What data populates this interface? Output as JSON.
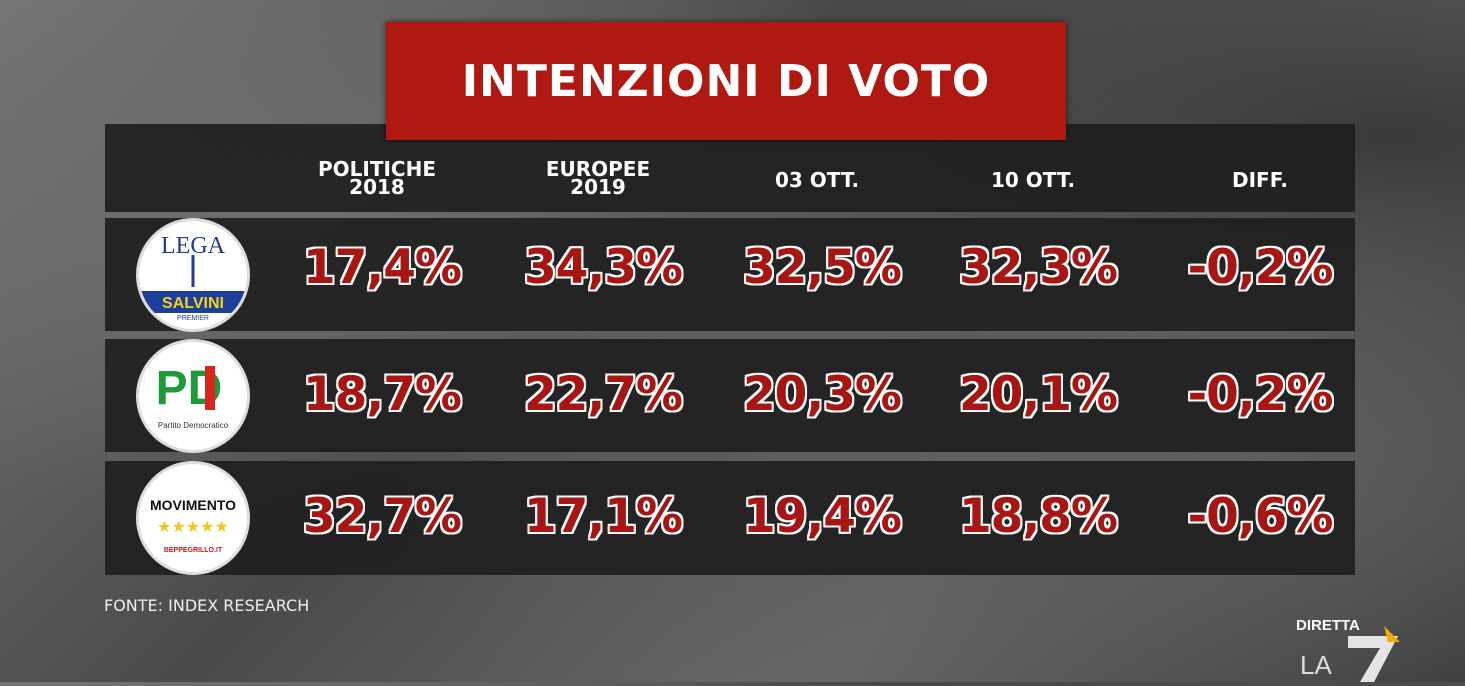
{
  "title": "INTENZIONI DI VOTO",
  "columns": [
    "POLITICHE 2018",
    "EUROPEE 2019",
    "03 OTT.",
    "10 OTT.",
    "DIFF."
  ],
  "columns_lines": [
    [
      "POLITICHE",
      "2018"
    ],
    [
      "EUROPEE",
      "2019"
    ],
    [
      "03 OTT.",
      ""
    ],
    [
      "10 OTT.",
      ""
    ],
    [
      "DIFF.",
      ""
    ]
  ],
  "rows": [
    {
      "party_logo_text": {
        "top": "LEGA",
        "band": "SALVINI",
        "sub": "PREMIER"
      },
      "values": [
        "17,4%",
        "34,3%",
        "32,5%",
        "32,3%",
        "-0,2%"
      ]
    },
    {
      "party_logo_text": {
        "top": "PD",
        "sub": "Partito Democratico"
      },
      "values": [
        "18,7%",
        "22,7%",
        "20,3%",
        "20,1%",
        "-0,2%"
      ]
    },
    {
      "party_logo_text": {
        "top": "MOVIMENTO",
        "sub": "BEPPEGRILLO.IT"
      },
      "values": [
        "32,7%",
        "17,1%",
        "19,4%",
        "18,8%",
        "-0,6%"
      ]
    }
  ],
  "source": "FONTE: INDEX RESEARCH",
  "brand": {
    "line1": "DIRETTA",
    "line2": "LA"
  },
  "colors": {
    "accent": "#b01812",
    "value": "#a71613"
  },
  "chart_data": {
    "type": "table",
    "title": "INTENZIONI DI VOTO",
    "columns": [
      "POLITICHE 2018",
      "EUROPEE 2019",
      "03 OTT.",
      "10 OTT.",
      "DIFF."
    ],
    "rows": [
      {
        "party": "LEGA SALVINI PREMIER",
        "values": [
          17.4,
          34.3,
          32.5,
          32.3,
          -0.2
        ]
      },
      {
        "party": "PD Partito Democratico",
        "values": [
          18.7,
          22.7,
          20.3,
          20.1,
          -0.2
        ]
      },
      {
        "party": "MOVIMENTO 5 STELLE",
        "values": [
          32.7,
          17.1,
          19.4,
          18.8,
          -0.6
        ]
      }
    ],
    "unit": "%"
  }
}
